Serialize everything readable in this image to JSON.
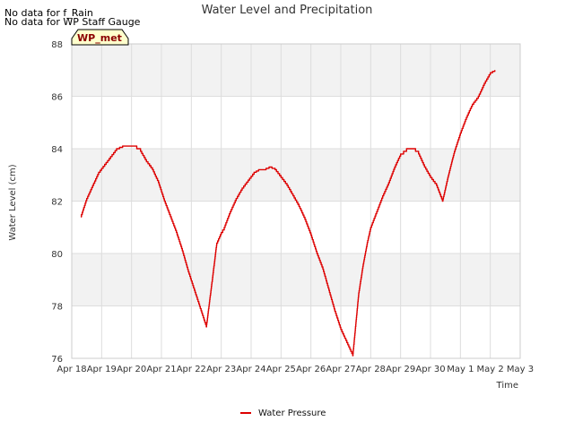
{
  "notes": [
    "No data for f_Rain",
    "No data for WP Staff Gauge"
  ],
  "badge": "WP_met",
  "colors": {
    "series": "#dd0000",
    "band": "#f2f2f2",
    "grid": "#dddddd",
    "badge_fill": "#ffffcc"
  },
  "chart_data": {
    "type": "line",
    "title": "Water Level and Precipitation",
    "xlabel": "Time",
    "ylabel": "Water Level (cm)",
    "xlim": [
      0,
      15
    ],
    "ylim": [
      76,
      88
    ],
    "x_ticks": [
      0,
      1,
      2,
      3,
      4,
      5,
      6,
      7,
      8,
      9,
      10,
      11,
      12,
      13,
      14,
      15
    ],
    "x_tick_labels": [
      "Apr 18",
      "Apr 19",
      "Apr 20",
      "Apr 21",
      "Apr 22",
      "Apr 23",
      "Apr 24",
      "Apr 25",
      "Apr 26",
      "Apr 27",
      "Apr 28",
      "Apr 29",
      "Apr 30",
      "May 1",
      "May 2",
      "May 3"
    ],
    "y_ticks": [
      76,
      78,
      80,
      82,
      84,
      86,
      88
    ],
    "legend": "bottom-center",
    "series": [
      {
        "name": "Water Pressure",
        "x": [
          0.3,
          0.5,
          0.7,
          0.9,
          1.1,
          1.3,
          1.5,
          1.7,
          1.9,
          2.05,
          2.3,
          2.5,
          2.7,
          2.9,
          3.1,
          3.3,
          3.5,
          3.7,
          3.9,
          4.1,
          4.3,
          4.5,
          4.7,
          4.85,
          5.0,
          5.1,
          5.3,
          5.5,
          5.7,
          5.9,
          6.1,
          6.25,
          6.4,
          6.6,
          6.8,
          7.0,
          7.2,
          7.4,
          7.6,
          7.8,
          8.0,
          8.2,
          8.4,
          8.6,
          8.8,
          9.0,
          9.2,
          9.4,
          9.6,
          9.75,
          9.9,
          10.0,
          10.2,
          10.4,
          10.6,
          10.8,
          11.0,
          11.2,
          11.4,
          11.6,
          11.8,
          12.0,
          12.2,
          12.4,
          12.6,
          12.8,
          13.0,
          13.2,
          13.4,
          13.6,
          13.8,
          14.0,
          14.15
        ],
        "values": [
          81.4,
          82.1,
          82.6,
          83.1,
          83.4,
          83.7,
          84.0,
          84.1,
          84.1,
          84.1,
          83.9,
          83.5,
          83.2,
          82.7,
          82.0,
          81.4,
          80.8,
          80.1,
          79.3,
          78.6,
          77.9,
          77.2,
          79.0,
          80.4,
          80.8,
          81.0,
          81.6,
          82.1,
          82.5,
          82.8,
          83.1,
          83.2,
          83.2,
          83.3,
          83.2,
          82.9,
          82.6,
          82.2,
          81.8,
          81.3,
          80.7,
          80.0,
          79.4,
          78.6,
          77.8,
          77.1,
          76.6,
          76.1,
          78.5,
          79.6,
          80.5,
          81.0,
          81.6,
          82.2,
          82.7,
          83.3,
          83.8,
          84.0,
          84.0,
          83.8,
          83.3,
          82.9,
          82.6,
          82.0,
          83.0,
          83.9,
          84.6,
          85.2,
          85.7,
          86.0,
          86.5,
          86.9,
          87.0
        ]
      }
    ]
  }
}
